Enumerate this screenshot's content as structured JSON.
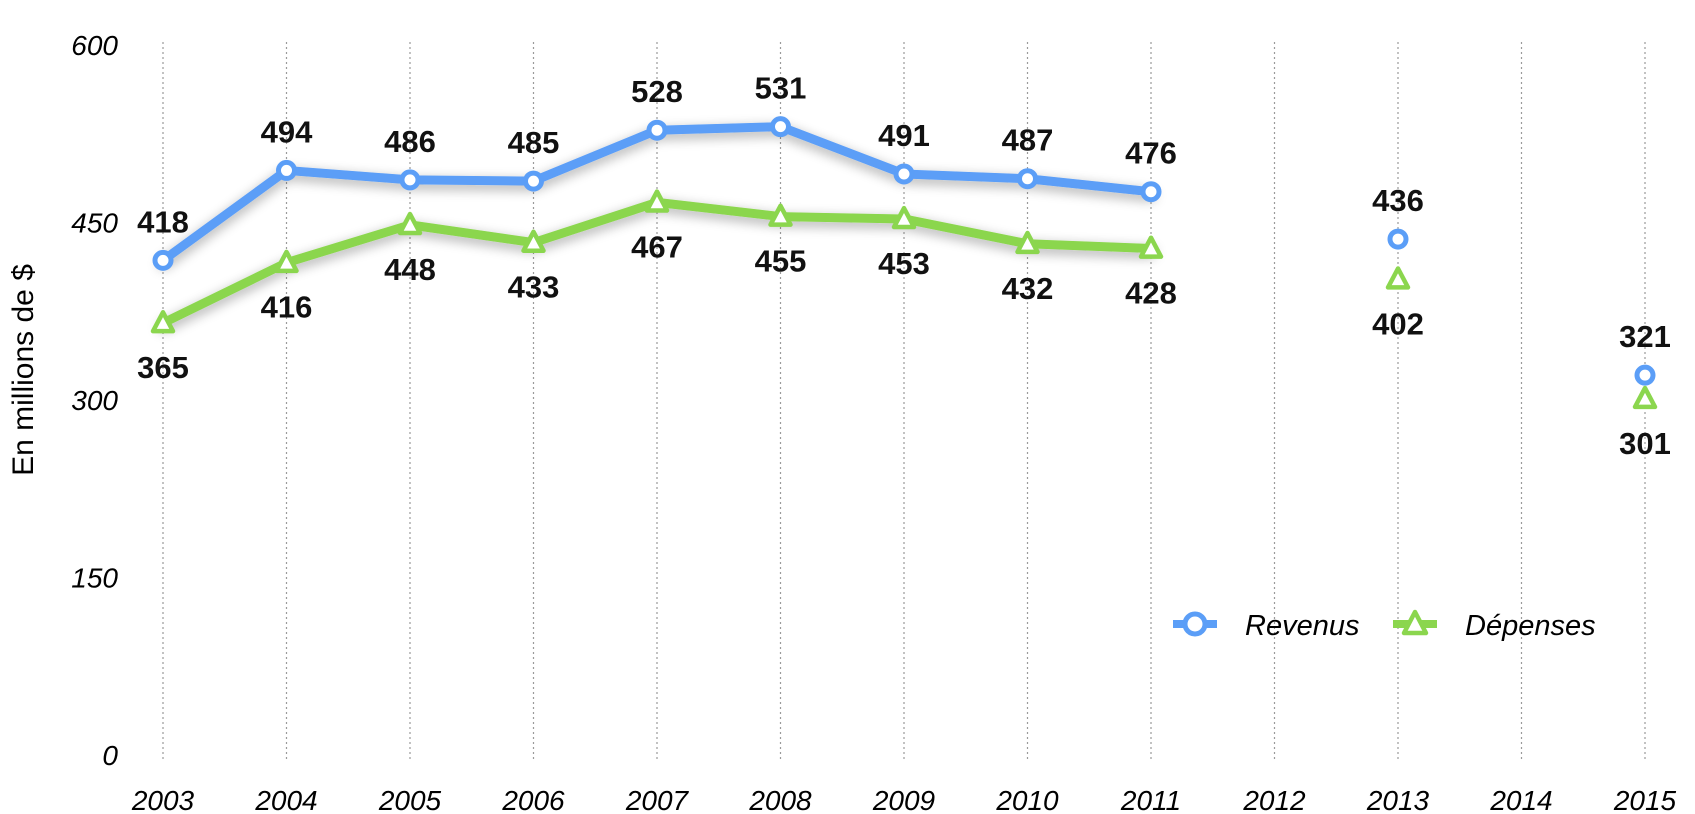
{
  "chart_data": {
    "type": "line",
    "title": "",
    "xlabel": "",
    "ylabel": "En millions de $",
    "ylim": [
      0,
      600
    ],
    "yticks": [
      "0",
      "150",
      "300",
      "450",
      "600"
    ],
    "categories": [
      "2003",
      "2004",
      "2005",
      "2006",
      "2007",
      "2008",
      "2009",
      "2010",
      "2011",
      "2012",
      "2013",
      "2014",
      "2015"
    ],
    "grid": "vertical dotted",
    "legend_position": "right",
    "series": [
      {
        "name": "Revenus",
        "color": "#5b9ef7",
        "marker": "circle",
        "x": [
          "2003",
          "2004",
          "2005",
          "2006",
          "2007",
          "2008",
          "2009",
          "2010",
          "2011",
          "2013",
          "2015"
        ],
        "values": [
          418,
          494,
          486,
          485,
          528,
          531,
          491,
          487,
          476,
          436,
          321
        ],
        "labels": [
          "418",
          "494",
          "486",
          "485",
          "528",
          "531",
          "491",
          "487",
          "476",
          "436",
          "321"
        ]
      },
      {
        "name": "Dépenses",
        "color": "#8bd64e",
        "marker": "triangle",
        "x": [
          "2003",
          "2004",
          "2005",
          "2006",
          "2007",
          "2008",
          "2009",
          "2010",
          "2011",
          "2013",
          "2015"
        ],
        "values": [
          365,
          416,
          448,
          433,
          467,
          455,
          453,
          432,
          428,
          402,
          301
        ],
        "labels": [
          "365",
          "416",
          "448",
          "433",
          "467",
          "455",
          "453",
          "432",
          "428",
          "402",
          "301"
        ]
      }
    ]
  }
}
